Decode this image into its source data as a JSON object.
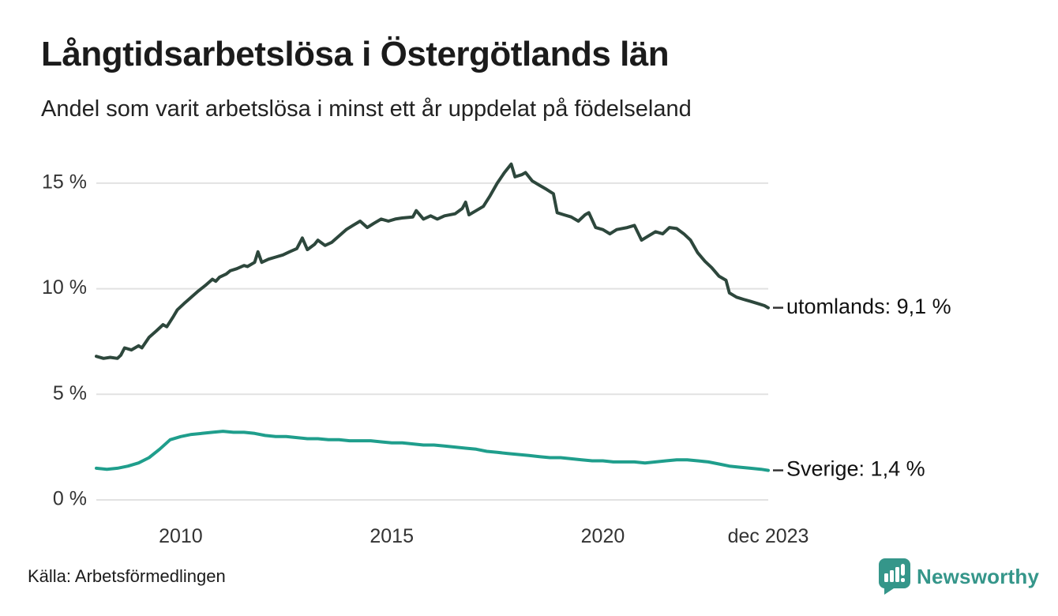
{
  "header": {
    "title": "Långtidsarbetslösa i Östergötlands län",
    "subtitle": "Andel som varit arbetslösa i minst ett år uppdelat på födelseland"
  },
  "footer": {
    "source": "Källa: Arbetsförmedlingen",
    "brand": "Newsworthy"
  },
  "colors": {
    "utomlands_line": "#2d473c",
    "sverige_line": "#1f9e8c",
    "grid": "#e2e2e2",
    "tick_text": "#333333",
    "end_label_text": "#111111",
    "end_label_dash": "#333333",
    "brand_teal": "#35968a",
    "background": "#ffffff"
  },
  "chart_data": {
    "type": "line",
    "title": "Långtidsarbetslösa i Östergötlands län",
    "subtitle": "Andel som varit arbetslösa i minst ett år uppdelat på födelseland",
    "x_unit": "decimal_year",
    "xlim": [
      2008.0,
      2023.92
    ],
    "ylim": [
      0,
      16.5
    ],
    "grid": "horizontal",
    "legend_position": "end-of-line-labels",
    "y_ticks": [
      {
        "value": 0,
        "label": "0 %"
      },
      {
        "value": 5,
        "label": "5 %"
      },
      {
        "value": 10,
        "label": "10 %"
      },
      {
        "value": 15,
        "label": "15 %"
      }
    ],
    "x_ticks": [
      {
        "value": 2010,
        "label": "2010"
      },
      {
        "value": 2015,
        "label": "2015"
      },
      {
        "value": 2020,
        "label": "2020"
      },
      {
        "value": 2023.92,
        "label": "dec 2023"
      }
    ],
    "series": [
      {
        "name": "utomlands",
        "end_label": "utomlands: 9,1 %",
        "last_value": 9.1,
        "color": "#2d473c",
        "points": [
          [
            2008.0,
            6.8
          ],
          [
            2008.17,
            6.7
          ],
          [
            2008.33,
            6.75
          ],
          [
            2008.5,
            6.7
          ],
          [
            2008.58,
            6.85
          ],
          [
            2008.67,
            7.2
          ],
          [
            2008.83,
            7.1
          ],
          [
            2009.0,
            7.3
          ],
          [
            2009.08,
            7.2
          ],
          [
            2009.25,
            7.7
          ],
          [
            2009.42,
            8.0
          ],
          [
            2009.58,
            8.3
          ],
          [
            2009.67,
            8.2
          ],
          [
            2009.83,
            8.7
          ],
          [
            2009.92,
            9.0
          ],
          [
            2010.08,
            9.3
          ],
          [
            2010.25,
            9.6
          ],
          [
            2010.42,
            9.9
          ],
          [
            2010.58,
            10.15
          ],
          [
            2010.75,
            10.45
          ],
          [
            2010.83,
            10.35
          ],
          [
            2010.92,
            10.55
          ],
          [
            2011.08,
            10.7
          ],
          [
            2011.17,
            10.85
          ],
          [
            2011.33,
            10.95
          ],
          [
            2011.5,
            11.1
          ],
          [
            2011.58,
            11.05
          ],
          [
            2011.75,
            11.25
          ],
          [
            2011.83,
            11.75
          ],
          [
            2011.92,
            11.25
          ],
          [
            2012.08,
            11.4
          ],
          [
            2012.25,
            11.5
          ],
          [
            2012.42,
            11.6
          ],
          [
            2012.58,
            11.75
          ],
          [
            2012.75,
            11.9
          ],
          [
            2012.88,
            12.4
          ],
          [
            2013.0,
            11.85
          ],
          [
            2013.17,
            12.1
          ],
          [
            2013.25,
            12.3
          ],
          [
            2013.42,
            12.05
          ],
          [
            2013.58,
            12.2
          ],
          [
            2013.75,
            12.5
          ],
          [
            2013.92,
            12.8
          ],
          [
            2014.08,
            13.0
          ],
          [
            2014.25,
            13.2
          ],
          [
            2014.42,
            12.9
          ],
          [
            2014.58,
            13.1
          ],
          [
            2014.75,
            13.3
          ],
          [
            2014.92,
            13.2
          ],
          [
            2015.08,
            13.3
          ],
          [
            2015.25,
            13.35
          ],
          [
            2015.5,
            13.4
          ],
          [
            2015.58,
            13.7
          ],
          [
            2015.75,
            13.3
          ],
          [
            2015.92,
            13.45
          ],
          [
            2016.08,
            13.3
          ],
          [
            2016.25,
            13.45
          ],
          [
            2016.5,
            13.55
          ],
          [
            2016.67,
            13.8
          ],
          [
            2016.75,
            14.1
          ],
          [
            2016.83,
            13.5
          ],
          [
            2017.0,
            13.7
          ],
          [
            2017.17,
            13.9
          ],
          [
            2017.33,
            14.4
          ],
          [
            2017.5,
            15.0
          ],
          [
            2017.67,
            15.5
          ],
          [
            2017.83,
            15.9
          ],
          [
            2017.92,
            15.3
          ],
          [
            2018.08,
            15.4
          ],
          [
            2018.17,
            15.5
          ],
          [
            2018.33,
            15.1
          ],
          [
            2018.5,
            14.9
          ],
          [
            2018.67,
            14.7
          ],
          [
            2018.83,
            14.5
          ],
          [
            2018.92,
            13.6
          ],
          [
            2019.08,
            13.5
          ],
          [
            2019.25,
            13.4
          ],
          [
            2019.42,
            13.2
          ],
          [
            2019.58,
            13.5
          ],
          [
            2019.67,
            13.6
          ],
          [
            2019.83,
            12.9
          ],
          [
            2020.0,
            12.8
          ],
          [
            2020.17,
            12.6
          ],
          [
            2020.33,
            12.8
          ],
          [
            2020.58,
            12.9
          ],
          [
            2020.75,
            13.0
          ],
          [
            2020.92,
            12.3
          ],
          [
            2021.08,
            12.5
          ],
          [
            2021.25,
            12.7
          ],
          [
            2021.42,
            12.6
          ],
          [
            2021.58,
            12.9
          ],
          [
            2021.75,
            12.85
          ],
          [
            2021.92,
            12.6
          ],
          [
            2022.08,
            12.3
          ],
          [
            2022.25,
            11.7
          ],
          [
            2022.42,
            11.3
          ],
          [
            2022.58,
            11.0
          ],
          [
            2022.75,
            10.6
          ],
          [
            2022.92,
            10.4
          ],
          [
            2023.0,
            9.8
          ],
          [
            2023.17,
            9.6
          ],
          [
            2023.33,
            9.5
          ],
          [
            2023.5,
            9.4
          ],
          [
            2023.67,
            9.3
          ],
          [
            2023.83,
            9.2
          ],
          [
            2023.92,
            9.1
          ]
        ]
      },
      {
        "name": "Sverige",
        "end_label": "Sverige: 1,4 %",
        "last_value": 1.4,
        "color": "#1f9e8c",
        "points": [
          [
            2008.0,
            1.5
          ],
          [
            2008.25,
            1.45
          ],
          [
            2008.5,
            1.5
          ],
          [
            2008.75,
            1.6
          ],
          [
            2009.0,
            1.75
          ],
          [
            2009.25,
            2.0
          ],
          [
            2009.5,
            2.4
          ],
          [
            2009.75,
            2.85
          ],
          [
            2010.0,
            3.0
          ],
          [
            2010.25,
            3.1
          ],
          [
            2010.5,
            3.15
          ],
          [
            2010.75,
            3.2
          ],
          [
            2011.0,
            3.25
          ],
          [
            2011.25,
            3.2
          ],
          [
            2011.5,
            3.2
          ],
          [
            2011.75,
            3.15
          ],
          [
            2012.0,
            3.05
          ],
          [
            2012.25,
            3.0
          ],
          [
            2012.5,
            3.0
          ],
          [
            2012.75,
            2.95
          ],
          [
            2013.0,
            2.9
          ],
          [
            2013.25,
            2.9
          ],
          [
            2013.5,
            2.85
          ],
          [
            2013.75,
            2.85
          ],
          [
            2014.0,
            2.8
          ],
          [
            2014.25,
            2.8
          ],
          [
            2014.5,
            2.8
          ],
          [
            2014.75,
            2.75
          ],
          [
            2015.0,
            2.7
          ],
          [
            2015.25,
            2.7
          ],
          [
            2015.5,
            2.65
          ],
          [
            2015.75,
            2.6
          ],
          [
            2016.0,
            2.6
          ],
          [
            2016.25,
            2.55
          ],
          [
            2016.5,
            2.5
          ],
          [
            2016.75,
            2.45
          ],
          [
            2017.0,
            2.4
          ],
          [
            2017.25,
            2.3
          ],
          [
            2017.5,
            2.25
          ],
          [
            2017.75,
            2.2
          ],
          [
            2018.0,
            2.15
          ],
          [
            2018.25,
            2.1
          ],
          [
            2018.5,
            2.05
          ],
          [
            2018.75,
            2.0
          ],
          [
            2019.0,
            2.0
          ],
          [
            2019.25,
            1.95
          ],
          [
            2019.5,
            1.9
          ],
          [
            2019.75,
            1.85
          ],
          [
            2020.0,
            1.85
          ],
          [
            2020.25,
            1.8
          ],
          [
            2020.5,
            1.8
          ],
          [
            2020.75,
            1.8
          ],
          [
            2021.0,
            1.75
          ],
          [
            2021.25,
            1.8
          ],
          [
            2021.5,
            1.85
          ],
          [
            2021.75,
            1.9
          ],
          [
            2022.0,
            1.9
          ],
          [
            2022.25,
            1.85
          ],
          [
            2022.5,
            1.8
          ],
          [
            2022.75,
            1.7
          ],
          [
            2023.0,
            1.6
          ],
          [
            2023.25,
            1.55
          ],
          [
            2023.5,
            1.5
          ],
          [
            2023.75,
            1.45
          ],
          [
            2023.92,
            1.4
          ]
        ]
      }
    ]
  }
}
